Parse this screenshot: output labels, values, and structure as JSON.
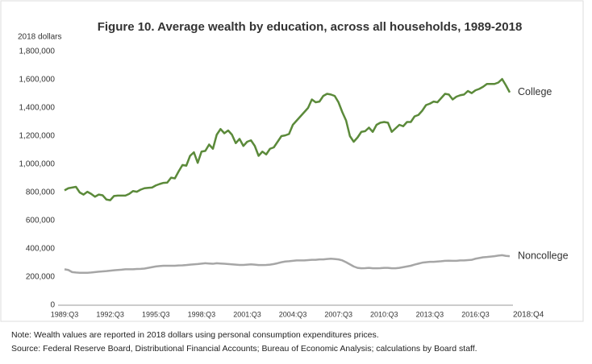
{
  "chart_data": {
    "type": "line",
    "title": "Figure 10.  Average wealth by education, across all households, 1989-2018",
    "y_label": "2018 dollars",
    "note": "Note:  Wealth values are reported in 2018 dollars using personal consumption expenditures prices.",
    "source": "Source:  Federal Reserve Board, Distributional Financial Accounts; Bureau of Economic Analysis; calculations by Board staff.",
    "categories": [
      "1989:Q3",
      null,
      null,
      null,
      null,
      null,
      null,
      null,
      null,
      null,
      null,
      null,
      "1992:Q3",
      null,
      null,
      null,
      null,
      null,
      null,
      null,
      null,
      null,
      null,
      null,
      "1995:Q3",
      null,
      null,
      null,
      null,
      null,
      null,
      null,
      null,
      null,
      null,
      null,
      "1998:Q3",
      null,
      null,
      null,
      null,
      null,
      null,
      null,
      null,
      null,
      null,
      null,
      "2001:Q3",
      null,
      null,
      null,
      null,
      null,
      null,
      null,
      null,
      null,
      null,
      null,
      "2004:Q3",
      null,
      null,
      null,
      null,
      null,
      null,
      null,
      null,
      null,
      null,
      null,
      "2007:Q3",
      null,
      null,
      null,
      null,
      null,
      null,
      null,
      null,
      null,
      null,
      null,
      "2010:Q3",
      null,
      null,
      null,
      null,
      null,
      null,
      null,
      null,
      null,
      null,
      null,
      "2013:Q3",
      null,
      null,
      null,
      null,
      null,
      null,
      null,
      null,
      null,
      null,
      null,
      "2016:Q3",
      null,
      null,
      null,
      null,
      null,
      null,
      null,
      null,
      "2018:Q4"
    ],
    "ylim": [
      0,
      1800000
    ],
    "yticks": [
      0,
      {
        "value": 200000,
        "label": "200,000"
      },
      {
        "value": 400000,
        "label": "400,000"
      },
      {
        "value": 600000,
        "label": "600,000"
      },
      {
        "value": 800000,
        "label": "800,000"
      },
      {
        "value": 1000000,
        "label": "1,000,000"
      },
      {
        "value": 1200000,
        "label": "1,200,000"
      },
      {
        "value": 1400000,
        "label": "1,400,000"
      },
      {
        "value": 1600000,
        "label": "1,600,000"
      },
      {
        "value": 1800000,
        "label": "1,800,000"
      }
    ],
    "grid": false,
    "series": [
      {
        "name": "College",
        "color": "#5b8a3a",
        "values": [
          815000,
          830000,
          835000,
          840000,
          800000,
          785000,
          805000,
          790000,
          770000,
          785000,
          780000,
          750000,
          745000,
          775000,
          778000,
          778000,
          778000,
          790000,
          810000,
          805000,
          820000,
          830000,
          833000,
          835000,
          850000,
          860000,
          868000,
          870000,
          905000,
          900000,
          950000,
          995000,
          990000,
          1060000,
          1085000,
          1010000,
          1090000,
          1095000,
          1140000,
          1110000,
          1210000,
          1250000,
          1220000,
          1240000,
          1210000,
          1150000,
          1180000,
          1130000,
          1160000,
          1170000,
          1130000,
          1060000,
          1090000,
          1070000,
          1110000,
          1120000,
          1160000,
          1200000,
          1205000,
          1215000,
          1280000,
          1310000,
          1340000,
          1370000,
          1400000,
          1460000,
          1440000,
          1445000,
          1485000,
          1500000,
          1495000,
          1485000,
          1440000,
          1370000,
          1310000,
          1200000,
          1160000,
          1190000,
          1230000,
          1235000,
          1260000,
          1230000,
          1280000,
          1295000,
          1300000,
          1295000,
          1230000,
          1255000,
          1280000,
          1270000,
          1300000,
          1300000,
          1340000,
          1350000,
          1380000,
          1420000,
          1430000,
          1445000,
          1440000,
          1470000,
          1500000,
          1495000,
          1460000,
          1480000,
          1490000,
          1495000,
          1520000,
          1505000,
          1525000,
          1535000,
          1550000,
          1570000,
          1570000,
          1570000,
          1580000,
          1605000,
          1560000,
          1510000
        ]
      },
      {
        "name": "Noncollege",
        "color": "#a6a6a6",
        "values": [
          255000,
          250000,
          235000,
          232000,
          230000,
          230000,
          230000,
          232000,
          235000,
          238000,
          240000,
          242000,
          245000,
          248000,
          250000,
          252000,
          255000,
          255000,
          255000,
          257000,
          258000,
          260000,
          265000,
          270000,
          275000,
          278000,
          280000,
          280000,
          280000,
          280000,
          282000,
          283000,
          285000,
          288000,
          290000,
          292000,
          295000,
          298000,
          296000,
          294000,
          298000,
          296000,
          294000,
          292000,
          290000,
          288000,
          286000,
          286000,
          288000,
          290000,
          288000,
          285000,
          285000,
          286000,
          288000,
          292000,
          298000,
          305000,
          310000,
          312000,
          315000,
          318000,
          318000,
          318000,
          320000,
          322000,
          322000,
          325000,
          325000,
          328000,
          330000,
          328000,
          325000,
          318000,
          305000,
          290000,
          275000,
          265000,
          262000,
          263000,
          265000,
          262000,
          262000,
          263000,
          265000,
          265000,
          262000,
          262000,
          265000,
          270000,
          275000,
          280000,
          288000,
          295000,
          302000,
          305000,
          308000,
          308000,
          310000,
          312000,
          315000,
          316000,
          315000,
          315000,
          318000,
          318000,
          320000,
          322000,
          330000,
          335000,
          340000,
          342000,
          345000,
          348000,
          352000,
          355000,
          350000,
          348000
        ]
      }
    ]
  }
}
